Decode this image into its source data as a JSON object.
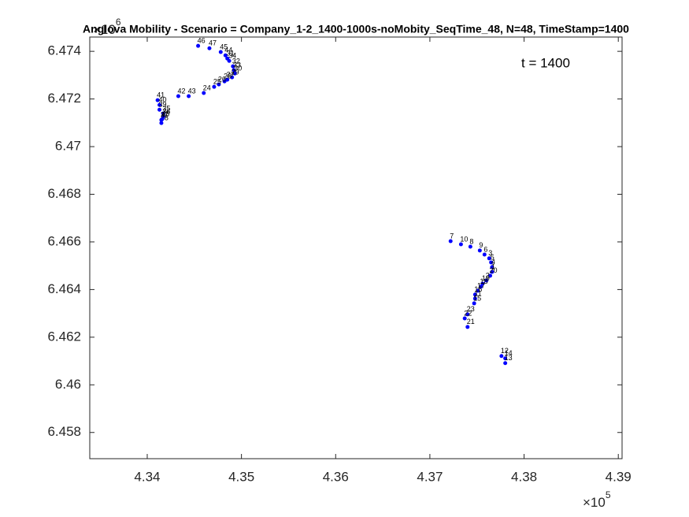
{
  "chart_data": {
    "type": "scatter",
    "title": "Anglova Mobility - Scenario = Company_1-2_1400-1000s-noMobity_SeqTime_48, N=48, TimeStamp=1400",
    "annotation": "t = 1400",
    "x_multiplier": {
      "base": "×10",
      "power": "5"
    },
    "y_multiplier": {
      "base": "×10",
      "power": "6"
    },
    "xlim": [
      4.3339,
      4.3904
    ],
    "xticks": [
      4.34,
      4.35,
      4.36,
      4.37,
      4.38,
      4.39
    ],
    "ylim": [
      6.4569,
      6.4746
    ],
    "yticks": [
      6.458,
      6.46,
      6.462,
      6.464,
      6.466,
      6.468,
      6.47,
      6.472,
      6.474
    ],
    "grid": false,
    "series": [
      {
        "color": "#0000ff",
        "point_labels": [
          "46",
          "47",
          "45",
          "44",
          "31",
          "34",
          "32",
          "33",
          "30",
          "29",
          "27",
          "28",
          "26",
          "25",
          "24",
          "42",
          "43",
          "41",
          "40",
          "39",
          "35",
          "36",
          "37",
          "38",
          "48",
          "7",
          "10",
          "8",
          "9",
          "6",
          "3",
          "5",
          "4",
          "1",
          "20",
          "2",
          "19",
          "18",
          "17",
          "16",
          "11",
          "15",
          "23",
          "22",
          "21",
          "12",
          "14",
          "13"
        ],
        "x": [
          4.3454,
          4.3466,
          4.3478,
          4.3483,
          4.3485,
          4.3487,
          4.3491,
          4.3492,
          4.3493,
          4.349,
          4.3485,
          4.3482,
          4.3476,
          4.3471,
          4.346,
          4.3433,
          4.3444,
          4.3411,
          4.3413,
          4.3413,
          4.3417,
          4.3417,
          4.3415,
          4.3415,
          4.3416,
          4.3722,
          4.3733,
          4.3743,
          4.3753,
          4.3758,
          4.3763,
          4.3765,
          4.3766,
          4.3766,
          4.3764,
          4.376,
          4.3756,
          4.3754,
          4.3751,
          4.3748,
          4.3748,
          4.3747,
          4.374,
          4.3737,
          4.374,
          4.3776,
          4.378,
          4.378
        ],
        "values": [
          6.47423,
          6.47413,
          6.47397,
          6.47383,
          6.4737,
          6.4736,
          6.47337,
          6.47321,
          6.47307,
          6.47291,
          6.47281,
          6.47274,
          6.47261,
          6.47251,
          6.47225,
          6.47212,
          6.47212,
          6.47195,
          6.47175,
          6.47155,
          6.47139,
          6.47126,
          6.47112,
          6.47099,
          6.47116,
          6.46603,
          6.4659,
          6.4658,
          6.46564,
          6.46547,
          6.46531,
          6.46514,
          6.46494,
          6.46474,
          6.46458,
          6.46438,
          6.46425,
          6.46412,
          6.46395,
          6.46379,
          6.46362,
          6.46342,
          6.46296,
          6.46279,
          6.46243,
          6.46121,
          6.46111,
          6.46091
        ]
      }
    ]
  }
}
